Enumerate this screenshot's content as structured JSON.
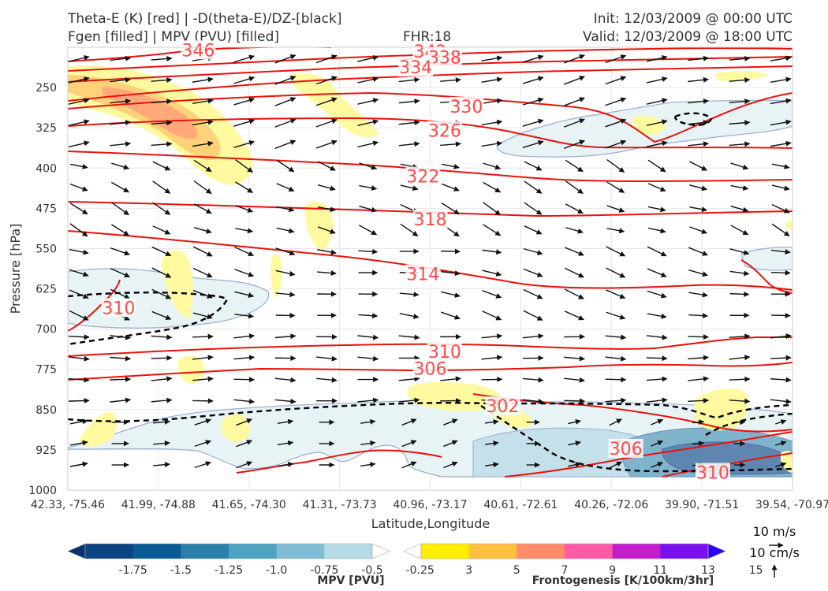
{
  "header": {
    "title_left_1": "Theta-E (K) [red] | -D(theta-E)/DZ-[black]",
    "title_left_2": "Fgen [filled] | MPV (PVU) [filled]",
    "fhr": "FHR:18",
    "init": "Init: 12/03/2009 @ 00:00 UTC",
    "valid": "Valid: 12/03/2009 @ 18:00 UTC"
  },
  "chart_data": {
    "type": "cross-section",
    "title": "Theta-E (K) [red] | -D(theta-E)/DZ-[black]",
    "subtitle": "Fgen [filled] | MPV (PVU) [filled]",
    "xlabel": "Latitude,Longitude",
    "ylabel": "Pressure [hPa]",
    "x_ticks": [
      "42.33, -75.46",
      "41.99, -74.88",
      "41.65, -74.30",
      "41.31, -73.73",
      "40.96, -73.17",
      "40.61, -72.61",
      "40.26, -72.06",
      "39.90, -71.51",
      "39.54, -70.97"
    ],
    "y_ticks": [
      250,
      325,
      400,
      475,
      550,
      625,
      700,
      775,
      850,
      925,
      1000
    ],
    "ylim": [
      1000,
      175
    ],
    "y_scale": "linear (inverted)",
    "grid": true,
    "theta_e_contour_labels": [
      {
        "value": 346,
        "x": 0.18,
        "p": 180
      },
      {
        "value": 342,
        "x": 0.5,
        "p": 182
      },
      {
        "value": 338,
        "x": 0.52,
        "p": 193
      },
      {
        "value": 334,
        "x": 0.48,
        "p": 212
      },
      {
        "value": 330,
        "x": 0.55,
        "p": 285
      },
      {
        "value": 326,
        "x": 0.52,
        "p": 330
      },
      {
        "value": 322,
        "x": 0.49,
        "p": 415
      },
      {
        "value": 318,
        "x": 0.5,
        "p": 495
      },
      {
        "value": 314,
        "x": 0.49,
        "p": 597
      },
      {
        "value": 310,
        "x": 0.07,
        "p": 660
      },
      {
        "value": 310,
        "x": 0.52,
        "p": 742
      },
      {
        "value": 306,
        "x": 0.5,
        "p": 773
      },
      {
        "value": 302,
        "x": 0.6,
        "p": 843
      },
      {
        "value": 306,
        "x": 0.77,
        "p": 922
      },
      {
        "value": 310,
        "x": 0.89,
        "p": 967
      }
    ],
    "wind_reference": {
      "horizontal": "10 m/s",
      "vertical": "10 cm/s"
    },
    "colorbars": [
      {
        "label": "MPV [PVU]",
        "ticks": [
          "-1.75",
          "-1.5",
          "-1.25",
          "-1.0",
          "-0.75",
          "-0.5",
          "-0.25"
        ],
        "colors": [
          "#08306b",
          "#0b4481",
          "#0c5a96",
          "#2c7fa8",
          "#4fa1c0",
          "#80bdd5",
          "#b7dbe6",
          "#ffffff"
        ]
      },
      {
        "label": "Frontogenesis [K/100km/3hr]",
        "ticks": [
          "3",
          "5",
          "7",
          "9",
          "11",
          "13",
          "15"
        ],
        "colors": [
          "#ffffff",
          "#ffee00",
          "#ffbf40",
          "#ff8c69",
          "#ff5aa5",
          "#c41ecc",
          "#7a10ee",
          "#2c00ff"
        ]
      }
    ]
  }
}
